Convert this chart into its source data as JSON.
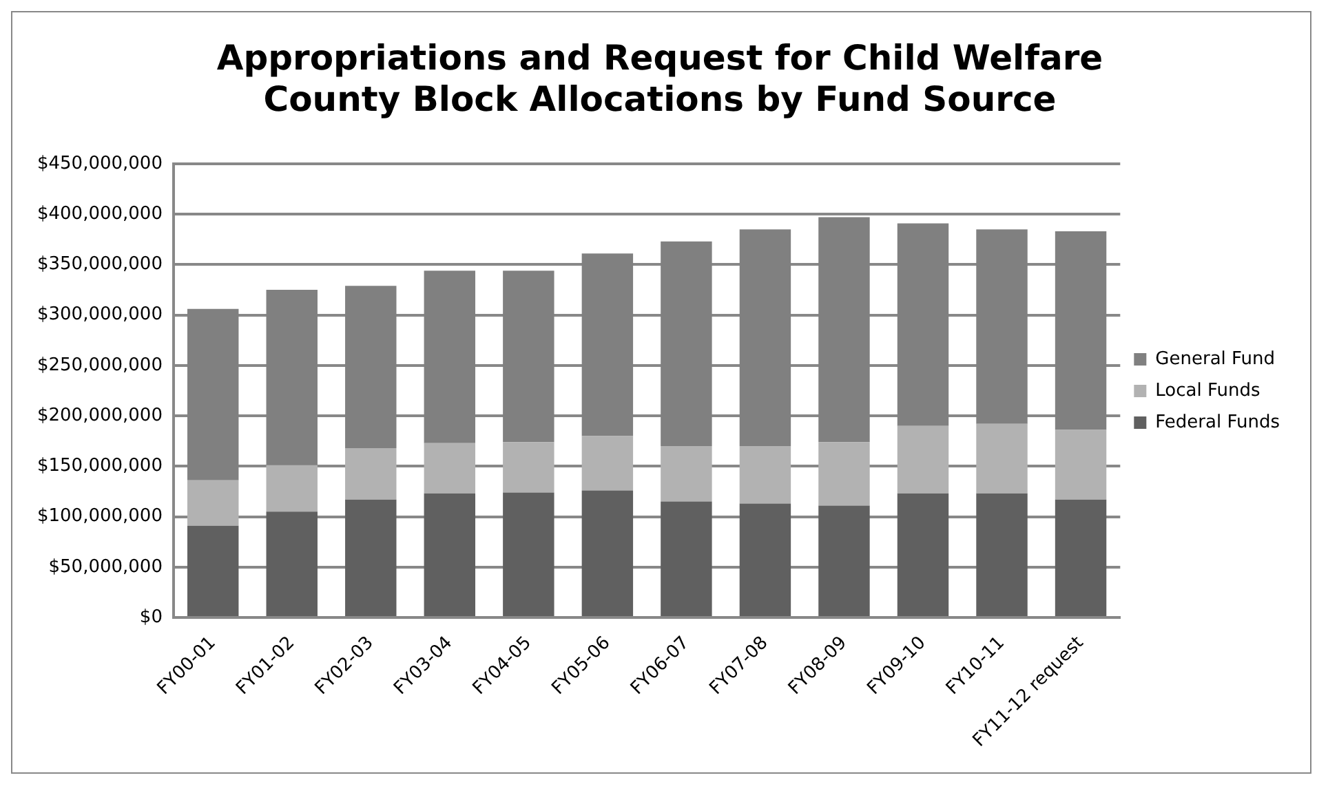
{
  "chart_data": {
    "type": "bar",
    "title": [
      "Appropriations and Request for Child Welfare",
      "County Block Allocations by Fund Source"
    ],
    "categories": [
      "FY00-01",
      "FY01-02",
      "FY02-03",
      "FY03-04",
      "FY04-05",
      "FY05-06",
      "FY06-07",
      "FY07-08",
      "FY08-09",
      "FY09-10",
      "FY10-11",
      "FY11-12 request"
    ],
    "stacked": true,
    "series": [
      {
        "name": "Federal Funds",
        "color": "#606060",
        "values": [
          91000000,
          105000000,
          117000000,
          123000000,
          124000000,
          126000000,
          115000000,
          113000000,
          111000000,
          123000000,
          123000000,
          117000000
        ]
      },
      {
        "name": "Local Funds",
        "color": "#b2b2b2",
        "values": [
          45000000,
          46000000,
          51000000,
          50000000,
          50000000,
          54000000,
          55000000,
          57000000,
          63000000,
          67000000,
          69000000,
          69000000
        ]
      },
      {
        "name": "General Fund",
        "color": "#808080",
        "values": [
          170000000,
          174000000,
          161000000,
          171000000,
          170000000,
          181000000,
          203000000,
          215000000,
          223000000,
          201000000,
          193000000,
          197000000
        ]
      }
    ],
    "ylim": [
      0,
      450000000
    ],
    "yticks": [
      {
        "value": 0,
        "label": "$0"
      },
      {
        "value": 50000000,
        "label": "$50,000,000"
      },
      {
        "value": 100000000,
        "label": "$100,000,000"
      },
      {
        "value": 150000000,
        "label": "$150,000,000"
      },
      {
        "value": 200000000,
        "label": "$200,000,000"
      },
      {
        "value": 250000000,
        "label": "$250,000,000"
      },
      {
        "value": 300000000,
        "label": "$300,000,000"
      },
      {
        "value": 350000000,
        "label": "$350,000,000"
      },
      {
        "value": 400000000,
        "label": "$400,000,000"
      },
      {
        "value": 450000000,
        "label": "$450,000,000"
      }
    ],
    "grid": "y",
    "legend": "right"
  }
}
